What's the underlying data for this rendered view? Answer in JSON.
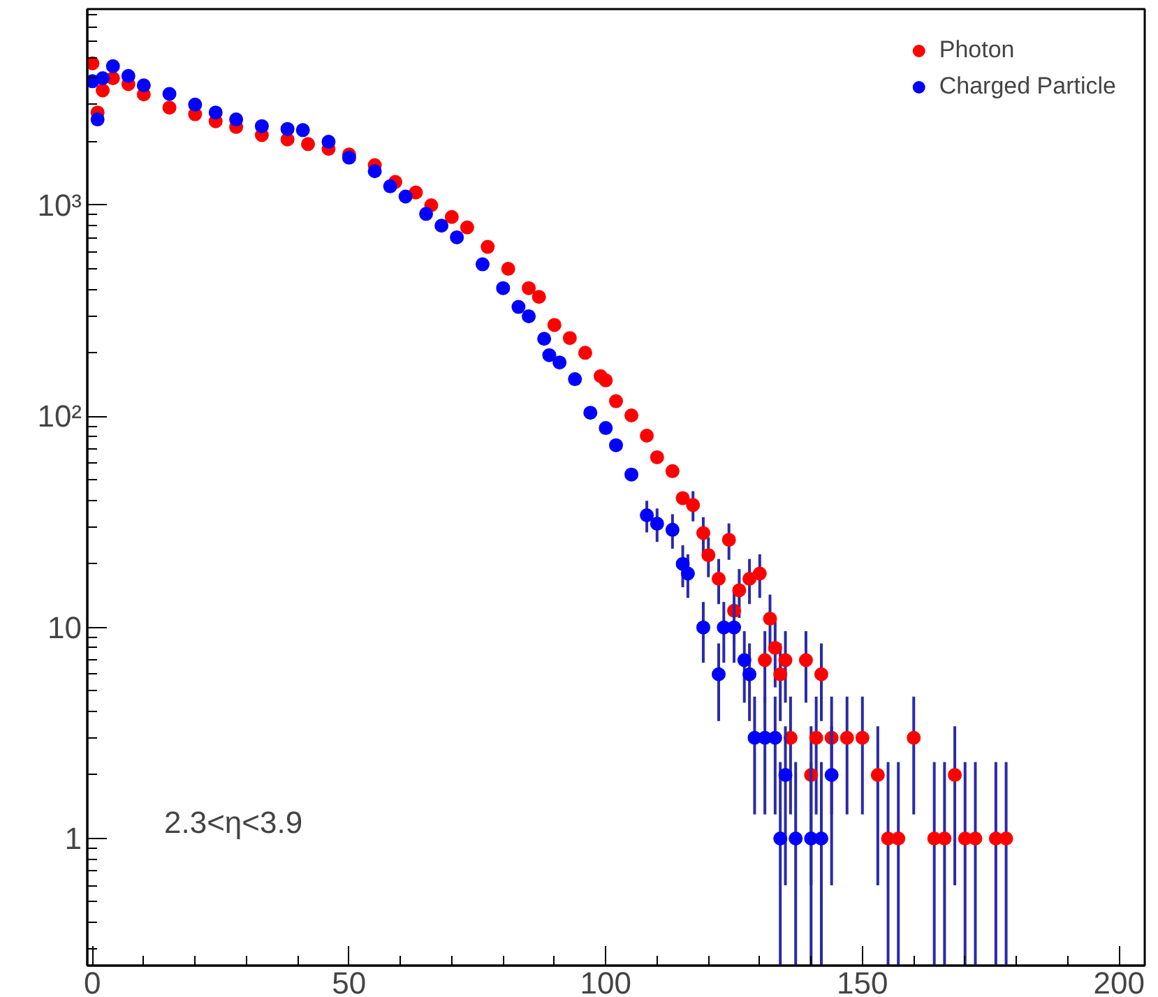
{
  "chart_data": {
    "type": "scatter",
    "log": "y",
    "grid": false,
    "legend": "top right",
    "marker": "circle",
    "xlim": [
      -1,
      205
    ],
    "ylim": [
      0.25,
      8500
    ],
    "xticks": [
      0,
      50,
      100,
      150,
      200
    ],
    "yticks": [
      1,
      10,
      {
        "value": 100,
        "label": "10²"
      },
      {
        "value": 1000,
        "label": "10³"
      }
    ],
    "annotations": [
      "2.3<η<3.9"
    ],
    "series": [
      {
        "name": "Photon",
        "color": "#ff0000",
        "x": [
          0,
          1,
          2,
          4,
          7,
          10,
          15,
          20,
          24,
          28,
          33,
          38,
          42,
          46,
          50,
          55,
          59,
          63,
          66,
          70,
          73,
          77,
          81,
          85,
          87,
          90,
          93,
          96,
          99,
          100,
          102,
          105,
          108,
          110,
          113,
          115,
          117,
          119,
          120,
          122,
          124,
          125,
          126,
          128,
          130,
          131,
          132,
          133,
          134,
          135,
          136,
          139,
          140,
          141,
          142,
          144,
          147,
          150,
          153,
          155,
          157,
          160,
          164,
          166,
          168,
          170,
          172,
          176,
          178
        ],
        "values": [
          4700,
          2750,
          3500,
          4000,
          3750,
          3350,
          2900,
          2700,
          2500,
          2350,
          2150,
          2050,
          1950,
          1850,
          1740,
          1550,
          1290,
          1150,
          1000,
          880,
          785,
          635,
          500,
          405,
          368,
          271,
          235,
          200,
          155,
          148,
          118,
          101,
          81,
          64,
          55,
          41,
          38,
          28,
          22,
          17,
          26,
          12,
          15,
          17,
          18,
          7,
          11,
          8,
          6,
          7,
          3,
          7,
          2,
          3,
          6,
          3,
          3,
          3,
          2,
          1,
          1,
          3,
          1,
          1,
          2,
          1,
          1,
          1,
          1
        ],
        "errors": [
          null,
          null,
          null,
          null,
          null,
          null,
          null,
          null,
          null,
          null,
          null,
          null,
          null,
          null,
          null,
          null,
          null,
          null,
          null,
          null,
          null,
          null,
          null,
          null,
          null,
          null,
          null,
          null,
          null,
          null,
          null,
          null,
          null,
          null,
          null,
          null,
          [
            31.8,
            44.2
          ],
          [
            22.7,
            33.3
          ],
          [
            17.3,
            26.7
          ],
          [
            12.9,
            21.1
          ],
          [
            20.9,
            31.1
          ],
          [
            8.5,
            15.5
          ],
          [
            11.1,
            18.9
          ],
          [
            12.9,
            21.1
          ],
          [
            13.8,
            22.2
          ],
          [
            4.4,
            9.6
          ],
          [
            7.7,
            14.3
          ],
          [
            5.2,
            10.8
          ],
          [
            3.6,
            8.4
          ],
          [
            4.4,
            9.6
          ],
          [
            1.3,
            4.7
          ],
          [
            4.4,
            9.6
          ],
          [
            0.6,
            3.4
          ],
          [
            1.3,
            4.7
          ],
          [
            3.6,
            8.4
          ],
          [
            1.3,
            4.7
          ],
          [
            1.3,
            4.7
          ],
          [
            1.3,
            4.7
          ],
          [
            0.6,
            3.4
          ],
          [
            0.25,
            2.3
          ],
          [
            0.25,
            2.3
          ],
          [
            1.3,
            4.7
          ],
          [
            0.25,
            2.3
          ],
          [
            0.25,
            2.3
          ],
          [
            0.6,
            3.4
          ],
          [
            0.25,
            2.3
          ],
          [
            0.25,
            2.3
          ],
          [
            0.25,
            2.3
          ],
          [
            0.25,
            2.3
          ]
        ]
      },
      {
        "name": "Charged Particle",
        "color": "#0000ff",
        "x": [
          0,
          1,
          2,
          4,
          7,
          10,
          15,
          20,
          24,
          28,
          33,
          38,
          41,
          46,
          50,
          55,
          58,
          61,
          65,
          68,
          71,
          76,
          80,
          83,
          85,
          88,
          89,
          91,
          94,
          97,
          100,
          102,
          105,
          108,
          110,
          113,
          115,
          116,
          119,
          122,
          123,
          125,
          127,
          128,
          129,
          131,
          133,
          134,
          135,
          137,
          140,
          142,
          144
        ],
        "values": [
          3870,
          2550,
          4000,
          4560,
          4100,
          3700,
          3370,
          3000,
          2750,
          2550,
          2370,
          2300,
          2270,
          2000,
          1680,
          1450,
          1230,
          1100,
          910,
          800,
          705,
          525,
          405,
          330,
          298,
          233,
          195,
          180,
          150,
          104,
          88,
          73,
          53,
          34,
          31,
          29,
          20,
          18,
          10,
          6,
          10,
          10,
          7,
          6,
          3,
          3,
          3,
          1,
          2,
          1,
          1,
          1,
          2
        ],
        "errors": [
          null,
          null,
          null,
          null,
          null,
          null,
          null,
          null,
          null,
          null,
          null,
          null,
          null,
          null,
          null,
          null,
          null,
          null,
          null,
          null,
          null,
          null,
          null,
          null,
          null,
          null,
          null,
          null,
          null,
          null,
          null,
          null,
          null,
          [
            28.2,
            39.8
          ],
          [
            25.4,
            36.6
          ],
          [
            23.6,
            34.4
          ],
          [
            15.5,
            24.5
          ],
          [
            13.8,
            22.2
          ],
          [
            6.8,
            13.2
          ],
          [
            3.6,
            8.4
          ],
          [
            6.8,
            13.2
          ],
          [
            6.8,
            13.2
          ],
          [
            4.4,
            9.6
          ],
          [
            3.6,
            8.4
          ],
          [
            1.3,
            4.7
          ],
          [
            1.3,
            4.7
          ],
          [
            1.3,
            4.7
          ],
          [
            0.25,
            2.3
          ],
          [
            0.6,
            3.4
          ],
          [
            0.25,
            2.3
          ],
          [
            0.25,
            2.3
          ],
          [
            0.25,
            2.3
          ],
          [
            0.6,
            3.4
          ]
        ]
      }
    ]
  }
}
